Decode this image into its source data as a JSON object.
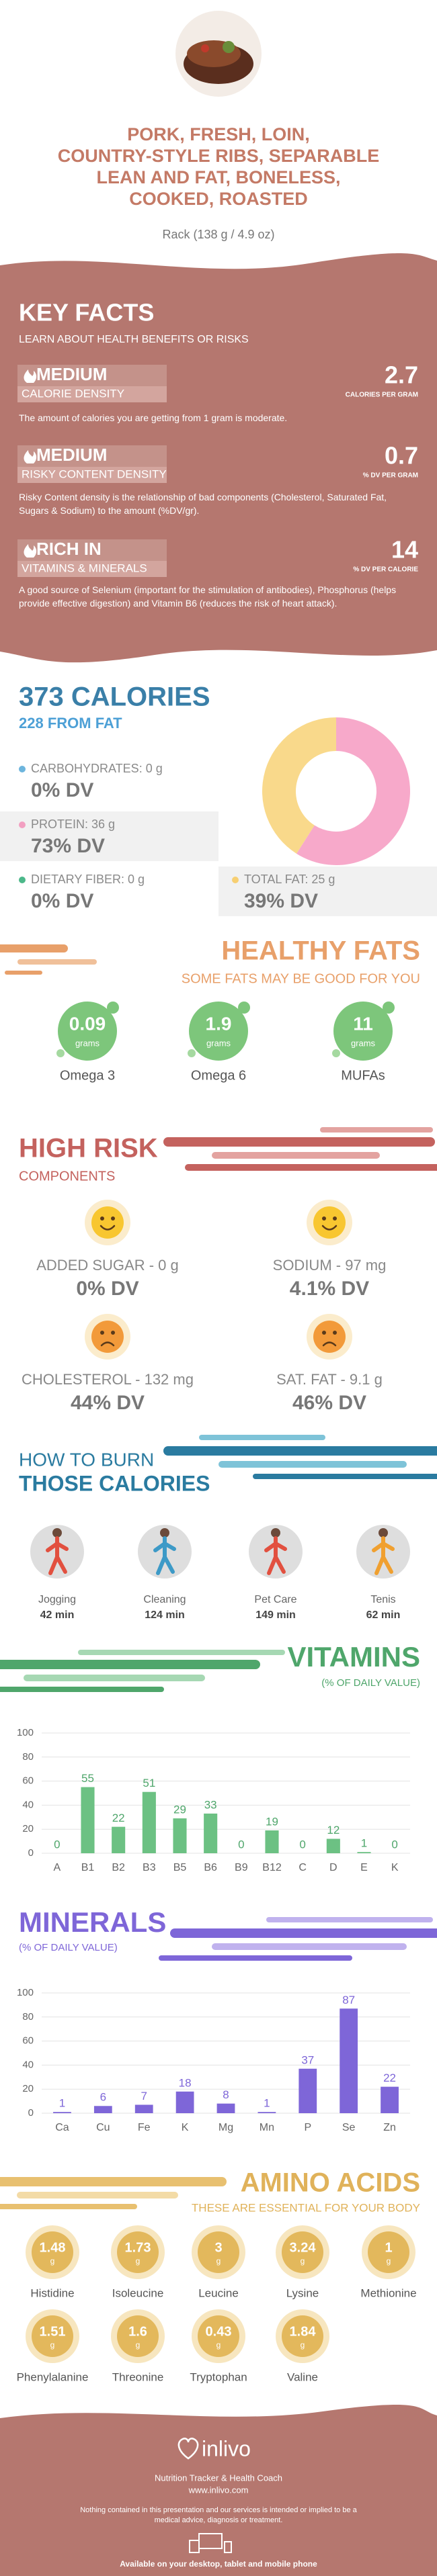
{
  "header": {
    "title_lines": [
      "PORK, FRESH, LOIN,",
      "COUNTRY-STYLE RIBS, SEPARABLE",
      "LEAN AND FAT, BONELESS,",
      "COOKED, ROASTED"
    ],
    "serving": "Rack (138 g / 4.9 oz)"
  },
  "key_facts": {
    "title": "KEY FACTS",
    "subtitle": "LEARN ABOUT HEALTH BENEFITS OR RISKS",
    "items": [
      {
        "level": "MEDIUM",
        "label": "CALORIE DENSITY",
        "value": 2.7,
        "unit": "CALORIES PER GRAM",
        "description": "The amount of calories you are getting from 1 gram is moderate."
      },
      {
        "level": "MEDIUM",
        "label": "RISKY CONTENT DENSITY",
        "value": 0.7,
        "unit": "% DV PER GRAM",
        "description": "Risky Content density is the relationship of bad components (Cholesterol, Saturated Fat, Sugars & Sodium) to the amount (%DV/gr)."
      },
      {
        "level": "RICH IN",
        "label": "VITAMINS & MINERALS",
        "value": 14,
        "unit": "% DV PER CALORIE",
        "description": "A good source of Selenium (important for the stimulation of antibodies), Phosphorus (helps provide effective digestion) and Vitamin B6 (reduces the risk of heart attack)."
      }
    ]
  },
  "calories": {
    "title": "373 CALORIES",
    "subtitle": "228 FROM FAT",
    "macros": [
      {
        "label": "CARBOHYDRATES: 0 g",
        "dv": "0% DV",
        "color": "#6db5dd"
      },
      {
        "label": "PROTEIN: 36 g",
        "dv": "73% DV",
        "color": "#f29fc1"
      },
      {
        "label": "DIETARY FIBER: 0 g",
        "dv": "0% DV",
        "color": "#4cb88a"
      },
      {
        "label": "TOTAL FAT: 25 g",
        "dv": "39% DV",
        "color": "#f7cf72"
      }
    ]
  },
  "chart_data": [
    {
      "type": "pie",
      "donut": true,
      "values": [
        0,
        36,
        25
      ],
      "colors": [
        "#6db5dd",
        "#f7a9ca",
        "#f9d98b"
      ]
    },
    {
      "type": "bar",
      "title": "VITAMINS",
      "subtitle": "(% OF DAILY VALUE)",
      "color": "#6cc183",
      "label_color": "#4fa66b",
      "categories": [
        "A",
        "B1",
        "B2",
        "B3",
        "B5",
        "B6",
        "B9",
        "B12",
        "C",
        "D",
        "E",
        "K"
      ],
      "values": [
        0,
        55,
        22,
        51,
        29,
        33,
        0,
        19,
        0,
        12,
        1,
        0
      ],
      "ylim": [
        0,
        100
      ],
      "yticks": [
        0,
        20,
        40,
        60,
        80,
        100
      ],
      "grid": true
    },
    {
      "type": "bar",
      "title": "MINERALS",
      "subtitle": "(% OF DAILY VALUE)",
      "color": "#7e66d8",
      "label_color": "#7e66d8",
      "categories": [
        "Ca",
        "Cu",
        "Fe",
        "K",
        "Mg",
        "Mn",
        "P",
        "Se",
        "Zn"
      ],
      "values": [
        1,
        6,
        7,
        18,
        8,
        1,
        37,
        87,
        22
      ],
      "ylim": [
        0,
        100
      ],
      "yticks": [
        0,
        20,
        40,
        60,
        80,
        100
      ],
      "grid": true
    }
  ],
  "healthy_fats": {
    "title": "HEALTHY FATS",
    "subtitle": "SOME FATS MAY BE GOOD FOR YOU",
    "unit": "grams",
    "items": [
      {
        "value": 0.09,
        "name": "Omega 3"
      },
      {
        "value": 1.9,
        "name": "Omega 6"
      },
      {
        "value": 11,
        "name": "MUFAs"
      }
    ]
  },
  "high_risk": {
    "title": "HIGH RISK",
    "subtitle": "COMPONENTS",
    "items": [
      {
        "label": "ADDED SUGAR - 0 g",
        "dv": "0% DV",
        "mood": "happy"
      },
      {
        "label": "SODIUM - 97 mg",
        "dv": "4.1% DV",
        "mood": "happy"
      },
      {
        "label": "CHOLESTEROL - 132 mg",
        "dv": "44% DV",
        "mood": "sad"
      },
      {
        "label": "SAT. FAT - 9.1 g",
        "dv": "46% DV",
        "mood": "sad"
      }
    ]
  },
  "burn": {
    "title_lines": [
      "HOW TO BURN",
      "THOSE CALORIES"
    ],
    "activities": [
      {
        "name": "Jogging",
        "time": "42 min"
      },
      {
        "name": "Cleaning",
        "time": "124 min"
      },
      {
        "name": "Pet Care",
        "time": "149 min"
      },
      {
        "name": "Tenis",
        "time": "62 min"
      }
    ]
  },
  "amino_acids": {
    "title": "AMINO ACIDS",
    "subtitle": "THESE ARE ESSENTIAL FOR YOUR BODY",
    "unit": "g",
    "items": [
      {
        "name": "Histidine",
        "value": 1.48
      },
      {
        "name": "Isoleucine",
        "value": 1.73
      },
      {
        "name": "Leucine",
        "value": 3
      },
      {
        "name": "Lysine",
        "value": 3.24
      },
      {
        "name": "Methionine",
        "value": 1
      },
      {
        "name": "Phenylalanine",
        "value": 1.51
      },
      {
        "name": "Threonine",
        "value": 1.6
      },
      {
        "name": "Tryptophan",
        "value": 0.43
      },
      {
        "name": "Valine",
        "value": 1.84
      }
    ]
  },
  "footer": {
    "brand": "inlivo",
    "tagline": "Nutrition Tracker & Health Coach",
    "url": "www.inlivo.com",
    "disclaimer": "Nothing contained in this presentation and our services is intended or implied to be a medical advice, diagnosis or treatment.",
    "availability": "Available on your desktop, tablet and mobile phone"
  }
}
